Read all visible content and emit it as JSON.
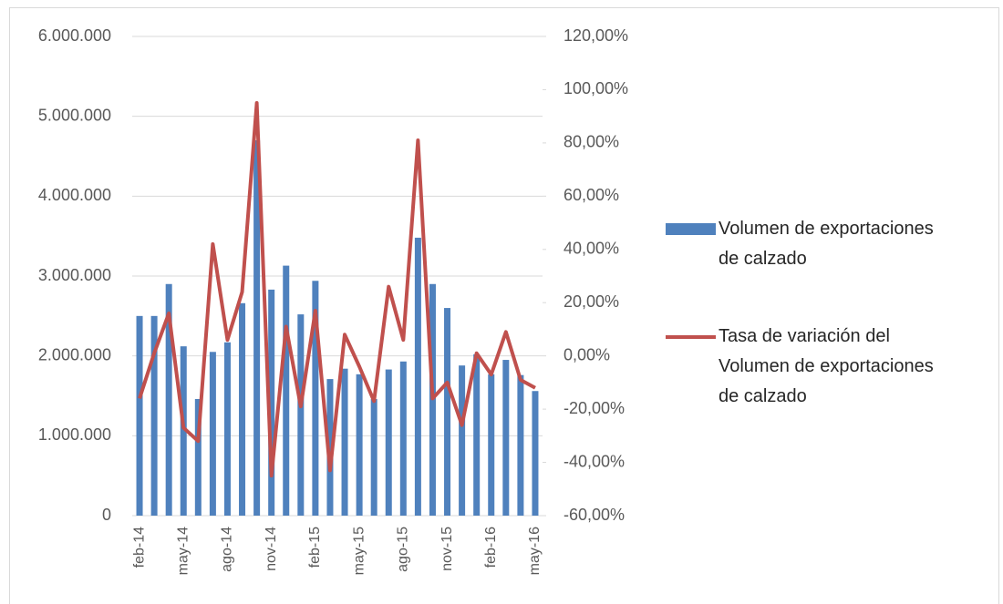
{
  "chart_data": {
    "type": "bar-line",
    "categories": [
      "feb-14",
      null,
      null,
      "may-14",
      null,
      null,
      "ago-14",
      null,
      null,
      "nov-14",
      null,
      null,
      "feb-15",
      null,
      null,
      "may-15",
      null,
      null,
      "ago-15",
      null,
      null,
      "nov-15",
      null,
      null,
      "feb-16",
      null,
      null,
      "may-16"
    ],
    "series": [
      {
        "name": "Volumen de exportaciones de calzado",
        "type": "bar",
        "color": "#4f81bd",
        "values": [
          2500000,
          2500000,
          2900000,
          2120000,
          1460000,
          2050000,
          2170000,
          2660000,
          4700000,
          2830000,
          3130000,
          2520000,
          2940000,
          1710000,
          1840000,
          1770000,
          1460000,
          1830000,
          1930000,
          3480000,
          2900000,
          2600000,
          1880000,
          2020000,
          1770000,
          1950000,
          1760000,
          1560000
        ]
      },
      {
        "name": "Tasa de variación del Volumen de exportaciones de calzado",
        "type": "line",
        "axis": "y2",
        "color": "#c0504d",
        "values": [
          -16,
          1,
          16,
          -27,
          -32,
          42,
          6,
          24,
          95,
          -45,
          11,
          -19,
          17,
          -43,
          8,
          -4,
          -17,
          26,
          6,
          81,
          -16,
          -10,
          -26,
          1,
          -7,
          9,
          -9,
          -12
        ]
      }
    ],
    "ylim": [
      0,
      6000000
    ],
    "yticks": [
      {
        "value": 0,
        "label": "0"
      },
      {
        "value": 1000000,
        "label": "1.000.000"
      },
      {
        "value": 2000000,
        "label": "2.000.000"
      },
      {
        "value": 3000000,
        "label": "3.000.000"
      },
      {
        "value": 4000000,
        "label": "4.000.000"
      },
      {
        "value": 5000000,
        "label": "5.000.000"
      },
      {
        "value": 6000000,
        "label": "6.000.000"
      }
    ],
    "y2lim": [
      -60,
      120
    ],
    "y2ticks": [
      {
        "value": -60,
        "label": "-60,00%"
      },
      {
        "value": -40,
        "label": "-40,00%"
      },
      {
        "value": -20,
        "label": "-20,00%"
      },
      {
        "value": 0,
        "label": "0,00%"
      },
      {
        "value": 20,
        "label": "20,00%"
      },
      {
        "value": 40,
        "label": "40,00%"
      },
      {
        "value": 60,
        "label": "60,00%"
      },
      {
        "value": 80,
        "label": "80,00%"
      },
      {
        "value": 100,
        "label": "100,00%"
      },
      {
        "value": 120,
        "label": "120,00%"
      }
    ],
    "grid": true,
    "legend": "right"
  }
}
